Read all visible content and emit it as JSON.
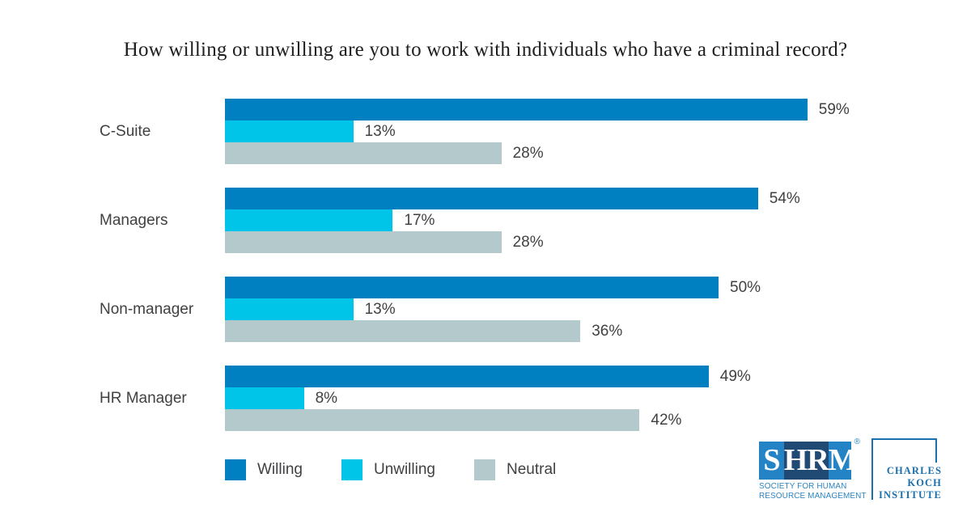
{
  "page": {
    "background": "#ffffff",
    "text_color": "#414042"
  },
  "chart_data": {
    "type": "bar",
    "orientation": "horizontal",
    "title": "How willing or unwilling are you to work with individuals who have a criminal record?",
    "categories": [
      "C-Suite",
      "Managers",
      "Non-manager",
      "HR Manager"
    ],
    "series": [
      {
        "name": "Willing",
        "color": "#0080c0",
        "values": [
          59,
          54,
          50,
          49
        ]
      },
      {
        "name": "Unwilling",
        "color": "#00c4e8",
        "values": [
          13,
          17,
          13,
          8
        ]
      },
      {
        "name": "Neutral",
        "color": "#b4c9cb",
        "values": [
          28,
          28,
          36,
          42
        ]
      }
    ],
    "value_suffix": "%",
    "value_labels": "outside-end",
    "xlim": [
      0,
      60
    ],
    "grid": false,
    "legend_position": "bottom-left"
  },
  "logos": {
    "shrm": {
      "letters": [
        "S",
        "HR",
        "M"
      ],
      "registered_mark": "®",
      "subtitle_line1": "SOCIETY FOR HUMAN",
      "subtitle_line2": "RESOURCE MANAGEMENT",
      "box_blue": "#2383c5",
      "band_blue": "#204a73"
    },
    "koch_institute": {
      "line1": "CHARLES",
      "line2": "KOCH",
      "line3": "INSTITUTE",
      "color": "#1a6fad"
    }
  }
}
